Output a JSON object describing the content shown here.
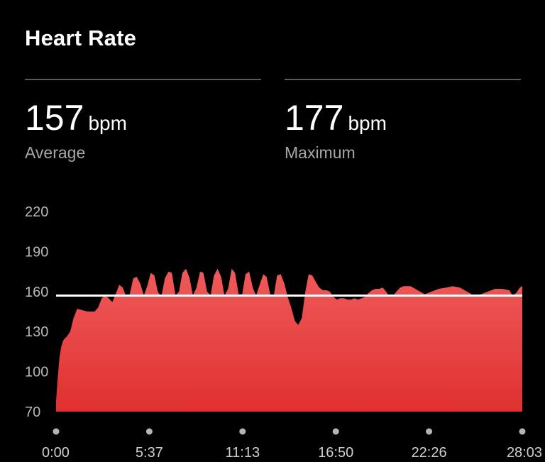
{
  "header": {
    "title": "Heart Rate"
  },
  "stats": [
    {
      "value": "157",
      "unit": "bpm",
      "label": "Average"
    },
    {
      "value": "177",
      "unit": "bpm",
      "label": "Maximum"
    }
  ],
  "colors": {
    "fill_top": "#ef5a5a",
    "fill_bottom": "#e03030",
    "avg_line": "#ffffff",
    "background": "#000000"
  },
  "chart_data": {
    "type": "area",
    "title": "",
    "xlabel": "",
    "ylabel": "",
    "ylim": [
      70,
      220
    ],
    "yticks": [
      220,
      190,
      160,
      130,
      100,
      70
    ],
    "xticks": [
      "0:00",
      "5:37",
      "11:13",
      "16:50",
      "22:26",
      "28:03"
    ],
    "x_range_seconds": [
      0,
      1683
    ],
    "average": 157,
    "grid": false,
    "series": [
      {
        "x": [
          0,
          6,
          12,
          18,
          25,
          32,
          38,
          51,
          63,
          76,
          95,
          114,
          139,
          152,
          165,
          177,
          190,
          203,
          215,
          228,
          241,
          253,
          266,
          279,
          291,
          304,
          317,
          329,
          342,
          355,
          367,
          380,
          393,
          406,
          418,
          431,
          444,
          456,
          469,
          482,
          494,
          507,
          520,
          532,
          545,
          558,
          570,
          583,
          596,
          608,
          621,
          634,
          646,
          659,
          672,
          684,
          697,
          710,
          722,
          735,
          748,
          760,
          773,
          786,
          798,
          811,
          824,
          836,
          849,
          862,
          874,
          887,
          900,
          912,
          925,
          938,
          950,
          963,
          976,
          988,
          1001,
          1014,
          1026,
          1039,
          1052,
          1065,
          1077,
          1090,
          1103,
          1115,
          1128,
          1141,
          1153,
          1166,
          1179,
          1191,
          1204,
          1217,
          1229,
          1242,
          1255,
          1267,
          1280,
          1305,
          1331,
          1356,
          1381,
          1407,
          1432,
          1458,
          1483,
          1508,
          1534,
          1559,
          1585,
          1610,
          1636,
          1648,
          1661,
          1674,
          1683
        ],
        "y": [
          78,
          95,
          110,
          118,
          123,
          125,
          126,
          130,
          140,
          147,
          146,
          145,
          145,
          148,
          155,
          157,
          155,
          152,
          158,
          165,
          163,
          156,
          158,
          170,
          171,
          166,
          157,
          164,
          174,
          172,
          160,
          156,
          170,
          175,
          174,
          157,
          160,
          174,
          177,
          170,
          157,
          163,
          175,
          174,
          160,
          157,
          172,
          177,
          171,
          157,
          162,
          177,
          174,
          158,
          158,
          173,
          175,
          163,
          157,
          165,
          173,
          171,
          158,
          157,
          172,
          173,
          166,
          156,
          148,
          138,
          135,
          140,
          160,
          173,
          172,
          167,
          163,
          161,
          161,
          160,
          156,
          154,
          155,
          155,
          154,
          154,
          155,
          154,
          155,
          156,
          159,
          161,
          162,
          162,
          163,
          160,
          156,
          157,
          160,
          163,
          164,
          164,
          164,
          161,
          158,
          160,
          162,
          163,
          164,
          163,
          160,
          157,
          158,
          160,
          162,
          162,
          161,
          157,
          159,
          163,
          164
        ]
      }
    ]
  }
}
